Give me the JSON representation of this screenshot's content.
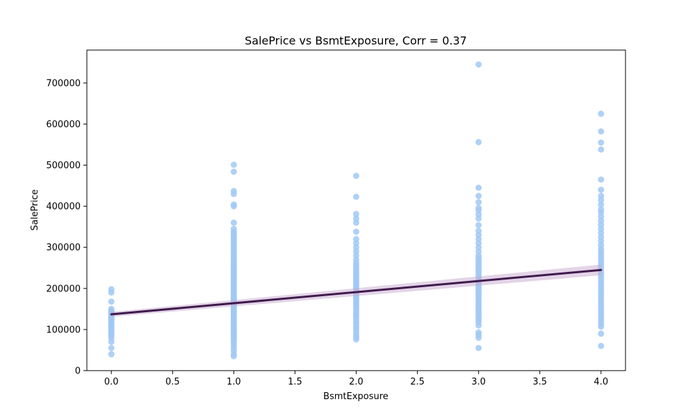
{
  "chart_data": {
    "type": "scatter",
    "title": "SalePrice vs BsmtExposure, Corr = 0.37",
    "xlabel": "BsmtExposure",
    "ylabel": "SalePrice",
    "xlim": [
      -0.2,
      4.2
    ],
    "ylim": [
      0,
      780000
    ],
    "x_ticks": [
      0.0,
      0.5,
      1.0,
      1.5,
      2.0,
      2.5,
      3.0,
      3.5,
      4.0
    ],
    "x_tick_labels": [
      "0.0",
      "0.5",
      "1.0",
      "1.5",
      "2.0",
      "2.5",
      "3.0",
      "3.5",
      "4.0"
    ],
    "y_ticks": [
      0,
      100000,
      200000,
      300000,
      400000,
      500000,
      600000,
      700000
    ],
    "y_tick_labels": [
      "0",
      "100000",
      "200000",
      "300000",
      "400000",
      "500000",
      "600000",
      "700000"
    ],
    "grid": false,
    "colors": {
      "points": "#a1c9f4",
      "regression_line": "#3f1a4d",
      "confidence_band": "#c8a9cf"
    },
    "regression": {
      "x": [
        0,
        4
      ],
      "y": [
        137000,
        245000
      ],
      "ci_lower": [
        131000,
        232000
      ],
      "ci_upper": [
        143000,
        258000
      ]
    },
    "points": [
      {
        "x": 0,
        "values": [
          40000,
          55000,
          70000,
          79000,
          85000,
          88000,
          92000,
          96000,
          100000,
          103000,
          106000,
          110000,
          113000,
          116000,
          119000,
          122000,
          125000,
          128000,
          131000,
          134000,
          137000,
          140000,
          143000,
          146000,
          150000,
          168000,
          190000,
          198000
        ]
      },
      {
        "x": 1,
        "values": [
          35000,
          40000,
          48000,
          55000,
          62000,
          68000,
          74000,
          79000,
          83000,
          87000,
          91000,
          95000,
          99000,
          103000,
          107000,
          111000,
          115000,
          119000,
          123000,
          127000,
          131000,
          135000,
          139000,
          143000,
          147000,
          151000,
          155000,
          159000,
          163000,
          167000,
          171000,
          175000,
          179000,
          183000,
          187000,
          191000,
          195000,
          199000,
          203000,
          207000,
          211000,
          215000,
          219000,
          223000,
          227000,
          231000,
          235000,
          239000,
          243000,
          247000,
          251000,
          255000,
          259000,
          263000,
          268000,
          273000,
          278000,
          283000,
          288000,
          293000,
          298000,
          303000,
          308000,
          313000,
          318000,
          323000,
          328000,
          333000,
          338000,
          345000,
          360000,
          400000,
          404000,
          430000,
          437000,
          484000,
          501000
        ]
      },
      {
        "x": 2,
        "values": [
          76000,
          82000,
          88000,
          95000,
          102000,
          108000,
          115000,
          121000,
          128000,
          134000,
          140000,
          146000,
          152000,
          158000,
          163000,
          168000,
          173000,
          178000,
          183000,
          188000,
          193000,
          198000,
          203000,
          208000,
          213000,
          218000,
          223000,
          228000,
          233000,
          238000,
          244000,
          250000,
          256000,
          262000,
          270000,
          280000,
          290000,
          300000,
          310000,
          320000,
          338000,
          360000,
          370000,
          381000,
          423000,
          474000
        ]
      },
      {
        "x": 3,
        "values": [
          55000,
          80000,
          87000,
          93000,
          110000,
          118000,
          124000,
          130000,
          136000,
          142000,
          148000,
          154000,
          160000,
          166000,
          172000,
          178000,
          184000,
          190000,
          196000,
          202000,
          208000,
          214000,
          220000,
          226000,
          232000,
          238000,
          244000,
          250000,
          256000,
          262000,
          268000,
          274000,
          280000,
          290000,
          300000,
          310000,
          320000,
          330000,
          340000,
          354000,
          370000,
          380000,
          390000,
          396000,
          410000,
          425000,
          445000,
          556000,
          745000
        ]
      },
      {
        "x": 4,
        "values": [
          60000,
          90000,
          107000,
          114000,
          121000,
          128000,
          135000,
          142000,
          149000,
          156000,
          163000,
          170000,
          177000,
          184000,
          191000,
          198000,
          205000,
          212000,
          219000,
          226000,
          233000,
          240000,
          247000,
          254000,
          261000,
          268000,
          275000,
          282000,
          289000,
          296000,
          305000,
          315000,
          325000,
          335000,
          345000,
          355000,
          365000,
          375000,
          385000,
          392000,
          404000,
          415000,
          425000,
          440000,
          465000,
          538000,
          555000,
          582000,
          625000
        ]
      }
    ]
  }
}
